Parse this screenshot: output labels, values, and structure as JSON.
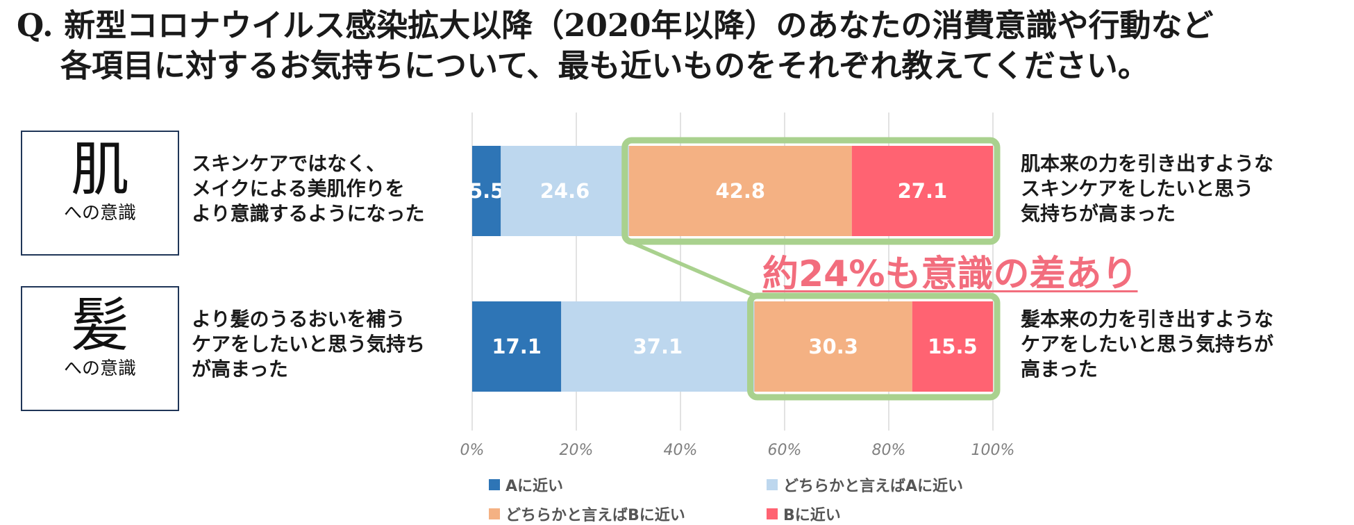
{
  "question": {
    "line1": "Q. 新型コロナウイルス感染拡大以降（2020年以降）のあなたの消費意識や行動など",
    "line2": "各項目に対するお気持ちについて、最も近いものをそれぞれ教えてください。"
  },
  "rows": [
    {
      "kanji": "肌",
      "sub": "への意識",
      "statement_a": [
        "スキンケアではなく、",
        "メイクによる美肌作りを",
        "より意識するようになった"
      ],
      "statement_b": [
        "肌本来の力を引き出すような",
        "スキンケアをしたいと思う",
        "気持ちが高まった"
      ]
    },
    {
      "kanji": "髪",
      "sub": "への意識",
      "statement_a": [
        "より髪のうるおいを補う",
        "ケアをしたいと思う気持ち",
        "が高まった"
      ],
      "statement_b": [
        "髪本来の力を引き出すような",
        "ケアをしたいと思う気持ちが",
        "高まった"
      ]
    }
  ],
  "callout": "約24%も意識の差あり",
  "chart_data": {
    "type": "bar",
    "orientation": "horizontal",
    "stacked": true,
    "categories": [
      "肌への意識",
      "髪への意識"
    ],
    "series": [
      {
        "name": "Aに近い",
        "values": [
          5.5,
          17.1
        ],
        "color": "#2e75b6"
      },
      {
        "name": "どちらかと言えばAに近い",
        "values": [
          24.6,
          37.1
        ],
        "color": "#bdd7ee"
      },
      {
        "name": "どちらかと言えばBに近い",
        "values": [
          42.8,
          30.3
        ],
        "color": "#f4b183"
      },
      {
        "name": "Bに近い",
        "values": [
          27.1,
          15.5
        ],
        "color": "#ff6372"
      }
    ],
    "x_ticks": [
      "0%",
      "20%",
      "40%",
      "60%",
      "80%",
      "100%"
    ],
    "xlim": [
      0,
      100
    ],
    "grid": true,
    "legend_position": "bottom",
    "highlight_color": "#a9d18e"
  }
}
